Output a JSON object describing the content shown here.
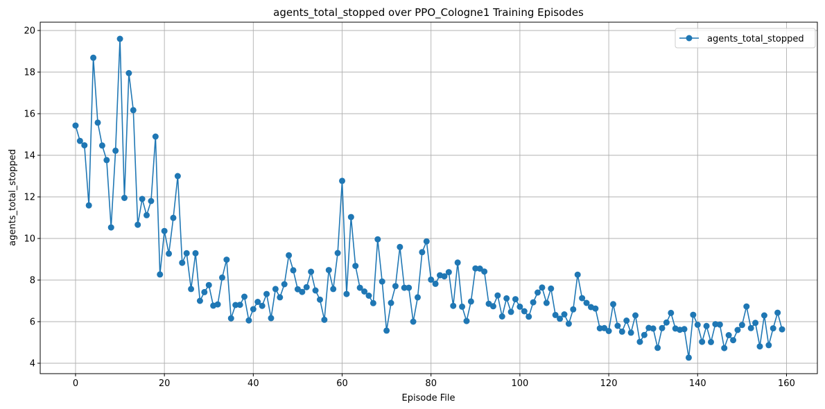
{
  "chart_data": {
    "type": "line",
    "title": "agents_total_stopped over PPO_Cologne1 Training Episodes",
    "xlabel": "Episode File",
    "ylabel": "agents_total_stopped",
    "xlim": [
      -7.95,
      166.95
    ],
    "ylim": [
      3.5,
      20.4
    ],
    "xticks": [
      0,
      20,
      40,
      60,
      80,
      100,
      120,
      140,
      160
    ],
    "yticks": [
      4,
      6,
      8,
      10,
      12,
      14,
      16,
      18,
      20
    ],
    "grid": true,
    "legend_position": "top-right",
    "series": [
      {
        "name": "agents_total_stopped",
        "color": "#1f77b4",
        "marker": "circle",
        "x": [
          0,
          1,
          2,
          3,
          4,
          5,
          6,
          7,
          8,
          9,
          10,
          11,
          12,
          13,
          14,
          15,
          16,
          17,
          18,
          19,
          20,
          21,
          22,
          23,
          24,
          25,
          26,
          27,
          28,
          29,
          30,
          31,
          32,
          33,
          34,
          35,
          36,
          37,
          38,
          39,
          40,
          41,
          42,
          43,
          44,
          45,
          46,
          47,
          48,
          49,
          50,
          51,
          52,
          53,
          54,
          55,
          56,
          57,
          58,
          59,
          60,
          61,
          62,
          63,
          64,
          65,
          66,
          67,
          68,
          69,
          70,
          71,
          72,
          73,
          74,
          75,
          76,
          77,
          78,
          79,
          80,
          81,
          82,
          83,
          84,
          85,
          86,
          87,
          88,
          89,
          90,
          91,
          92,
          93,
          94,
          95,
          96,
          97,
          98,
          99,
          100,
          101,
          102,
          103,
          104,
          105,
          106,
          107,
          108,
          109,
          110,
          111,
          112,
          113,
          114,
          115,
          116,
          117,
          118,
          119,
          120,
          121,
          122,
          123,
          124,
          125,
          126,
          127,
          128,
          129,
          130,
          131,
          132,
          133,
          134,
          135,
          136,
          137,
          138,
          139,
          140,
          141,
          142,
          143,
          144,
          145,
          146,
          147,
          148,
          149,
          150,
          151,
          152,
          153,
          154,
          155,
          156,
          157,
          158,
          159
        ],
        "y": [
          15.43,
          14.69,
          14.48,
          11.59,
          18.69,
          15.57,
          14.47,
          13.77,
          10.53,
          14.22,
          19.6,
          11.95,
          17.95,
          16.17,
          10.66,
          11.9,
          11.12,
          11.8,
          14.9,
          8.27,
          10.36,
          9.27,
          10.99,
          13.0,
          8.83,
          9.29,
          7.57,
          9.29,
          7.0,
          7.42,
          7.76,
          6.77,
          6.83,
          8.12,
          8.98,
          6.16,
          6.8,
          6.81,
          7.2,
          6.06,
          6.6,
          6.95,
          6.76,
          7.33,
          6.17,
          7.57,
          7.17,
          7.8,
          9.19,
          8.47,
          7.56,
          7.43,
          7.66,
          8.4,
          7.5,
          7.06,
          6.09,
          8.48,
          7.57,
          9.3,
          12.77,
          7.33,
          11.03,
          8.68,
          7.63,
          7.45,
          7.25,
          6.89,
          9.96,
          7.93,
          5.57,
          6.9,
          7.71,
          9.59,
          7.63,
          7.63,
          6.0,
          7.17,
          9.34,
          9.86,
          8.02,
          7.82,
          8.23,
          8.18,
          8.38,
          6.76,
          8.84,
          6.72,
          6.03,
          6.97,
          8.56,
          8.55,
          8.41,
          6.86,
          6.74,
          7.26,
          6.25,
          7.12,
          6.47,
          7.08,
          6.72,
          6.5,
          6.24,
          6.93,
          7.4,
          7.64,
          6.9,
          7.59,
          6.32,
          6.14,
          6.35,
          5.9,
          6.59,
          8.26,
          7.13,
          6.9,
          6.7,
          6.63,
          5.68,
          5.69,
          5.55,
          6.84,
          5.8,
          5.52,
          6.05,
          5.47,
          6.3,
          5.03,
          5.36,
          5.7,
          5.67,
          4.74,
          5.69,
          5.96,
          6.42,
          5.67,
          5.61,
          5.64,
          4.27,
          6.33,
          5.85,
          5.03,
          5.79,
          5.02,
          5.88,
          5.86,
          4.73,
          5.35,
          5.11,
          5.6,
          5.84,
          6.73,
          5.69,
          5.94,
          4.81,
          6.3,
          4.87,
          5.68,
          6.43,
          5.63
        ]
      }
    ]
  }
}
